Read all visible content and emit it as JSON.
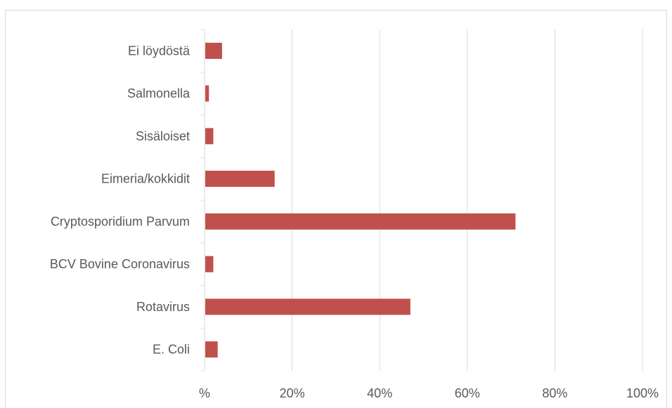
{
  "chart_data": {
    "type": "bar",
    "orientation": "horizontal",
    "title": "",
    "xlabel": "",
    "ylabel": "",
    "categories": [
      "Ei löydöstä",
      "Salmonella",
      "Sisäloiset",
      "Eimeria/kokkidit",
      "Cryptosporidium Parvum",
      "BCV Bovine Coronavirus",
      "Rotavirus",
      "E. Coli"
    ],
    "values": [
      4,
      1,
      2,
      16,
      71,
      2,
      47,
      3
    ],
    "xlim": [
      0,
      100
    ],
    "x_ticks": [
      0,
      20,
      40,
      60,
      80,
      100
    ],
    "x_tick_labels": [
      "%",
      "20%",
      "40%",
      "60%",
      "80%",
      "100%"
    ],
    "grid": "vertical",
    "legend": "none",
    "bar_color": "#c0504d",
    "grid_color": "#d9d9d9"
  }
}
